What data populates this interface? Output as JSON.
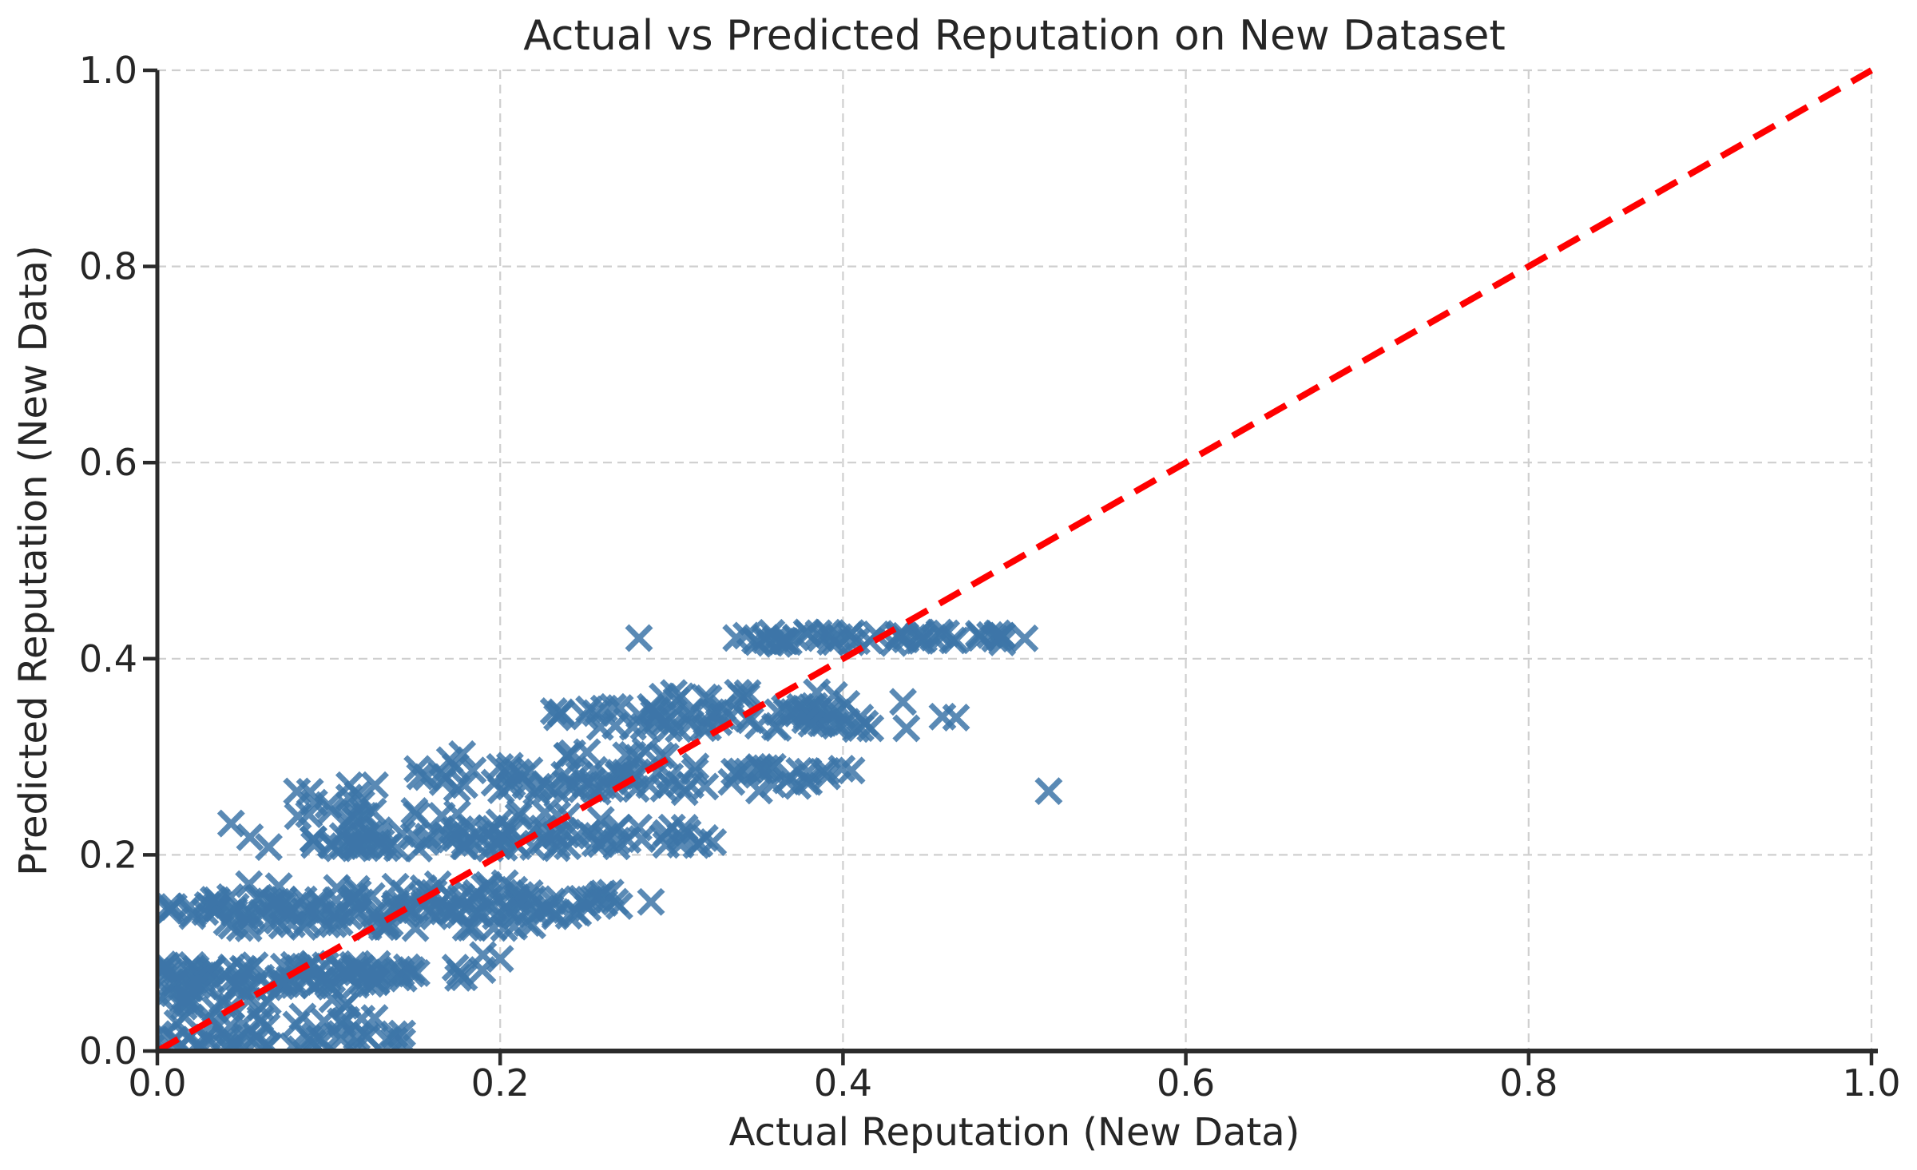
{
  "figure": {
    "background": "#ffffff"
  },
  "chart_data": {
    "type": "scatter",
    "title": "Actual vs Predicted Reputation on New Dataset",
    "xlabel": "Actual Reputation (New Data)",
    "ylabel": "Predicted Reputation (New Data)",
    "xlim": [
      0.0,
      1.0
    ],
    "ylim": [
      0.0,
      1.0
    ],
    "xticks": [
      0.0,
      0.2,
      0.4,
      0.6,
      0.8,
      1.0
    ],
    "yticks": [
      0.0,
      0.2,
      0.4,
      0.6,
      0.8,
      1.0
    ],
    "grid": {
      "visible": true,
      "style": "dashed",
      "color": "#cfcfcf"
    },
    "legend": "none",
    "axis_style": {
      "spine_color": "#2b2b2b",
      "tick_color": "#2b2b2b",
      "text_color": "#262626",
      "spines_shown": [
        "left",
        "bottom"
      ]
    },
    "reference_line": {
      "name": "identity y = x",
      "from": [
        0.0,
        0.0
      ],
      "to": [
        1.0,
        1.0
      ],
      "color": "#ff0000",
      "style": "dashed",
      "width": 8
    },
    "series": [
      {
        "name": "predicted vs actual reputation (new data)",
        "marker": "x",
        "color": "#3d76a8",
        "opacity": 0.85,
        "marker_size": 30,
        "seed": 20,
        "cluster_format": [
          "x_min",
          "x_max",
          "y_center",
          "y_jitter",
          "count"
        ],
        "clusters": [
          [
            0.335,
            0.47,
            0.421,
            0.006,
            48
          ],
          [
            0.477,
            0.528,
            0.421,
            0.005,
            11
          ],
          [
            0.228,
            0.4,
            0.345,
            0.007,
            42
          ],
          [
            0.25,
            0.42,
            0.333,
            0.005,
            30
          ],
          [
            0.29,
            0.4,
            0.362,
            0.005,
            12
          ],
          [
            0.147,
            0.4,
            0.285,
            0.006,
            46
          ],
          [
            0.16,
            0.385,
            0.27,
            0.006,
            40
          ],
          [
            0.17,
            0.31,
            0.301,
            0.005,
            12
          ],
          [
            0.077,
            0.125,
            0.252,
            0.013,
            10
          ],
          [
            0.09,
            0.3,
            0.212,
            0.006,
            55
          ],
          [
            0.1,
            0.31,
            0.223,
            0.005,
            35
          ],
          [
            0.11,
            0.26,
            0.239,
            0.006,
            18
          ],
          [
            0.3,
            0.325,
            0.215,
            0.006,
            6
          ],
          [
            0.005,
            0.27,
            0.143,
            0.006,
            75
          ],
          [
            0.02,
            0.27,
            0.156,
            0.006,
            55
          ],
          [
            0.03,
            0.23,
            0.13,
            0.005,
            30
          ],
          [
            0.05,
            0.22,
            0.168,
            0.004,
            12
          ],
          [
            0.0,
            0.155,
            0.083,
            0.006,
            55
          ],
          [
            0.0,
            0.15,
            0.07,
            0.005,
            40
          ],
          [
            0.158,
            0.2,
            0.08,
            0.007,
            5
          ],
          [
            0.015,
            0.125,
            0.048,
            0.006,
            14
          ],
          [
            0.01,
            0.13,
            0.03,
            0.006,
            18
          ],
          [
            0.0,
            0.145,
            0.013,
            0.005,
            28
          ],
          [
            0.0,
            0.085,
            0.003,
            0.004,
            16
          ],
          [
            0.0,
            0.02,
            0.06,
            0.012,
            8
          ]
        ],
        "points": [
          [
            0.281,
            0.421
          ],
          [
            0.402,
            0.354
          ],
          [
            0.41,
            0.34
          ],
          [
            0.416,
            0.329
          ],
          [
            0.435,
            0.356
          ],
          [
            0.437,
            0.329
          ],
          [
            0.458,
            0.341
          ],
          [
            0.466,
            0.34
          ],
          [
            0.112,
            0.271
          ],
          [
            0.127,
            0.271
          ],
          [
            0.405,
            0.286
          ],
          [
            0.52,
            0.265
          ],
          [
            0.043,
            0.232
          ],
          [
            0.054,
            0.218
          ],
          [
            0.065,
            0.208
          ],
          [
            0.288,
            0.152
          ],
          [
            0.19,
            0.098
          ],
          [
            0.2,
            0.094
          ]
        ]
      }
    ]
  }
}
